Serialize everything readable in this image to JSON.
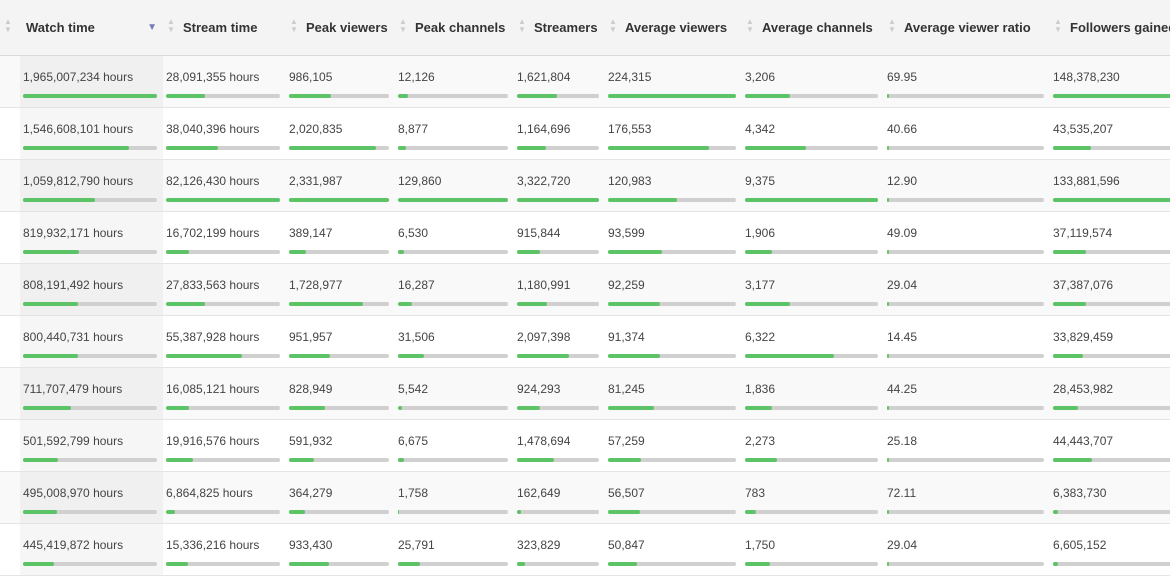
{
  "colors": {
    "bar_fill": "#5cc466",
    "bar_track": "#d0d0d0",
    "sort_arrow": "#7a7ab8"
  },
  "columns": [
    "Watch time",
    "Stream time",
    "Peak viewers",
    "Peak channels",
    "Streamers",
    "Average viewers",
    "Average channels",
    "Average viewer ratio",
    "Followers gained"
  ],
  "sorted_column": "Watch time",
  "sort_direction": "descending",
  "rows": [
    [
      "1,965,007,234 hours",
      "28,091,355 hours",
      "986,105",
      "12,126",
      "1,621,804",
      "224,315",
      "3,206",
      "69.95",
      "148,378,230"
    ],
    [
      "1,546,608,101 hours",
      "38,040,396 hours",
      "2,020,835",
      "8,877",
      "1,164,696",
      "176,553",
      "4,342",
      "40.66",
      "43,535,207"
    ],
    [
      "1,059,812,790 hours",
      "82,126,430 hours",
      "2,331,987",
      "129,860",
      "3,322,720",
      "120,983",
      "9,375",
      "12.90",
      "133,881,596"
    ],
    [
      "819,932,171 hours",
      "16,702,199 hours",
      "389,147",
      "6,530",
      "915,844",
      "93,599",
      "1,906",
      "49.09",
      "37,119,574"
    ],
    [
      "808,191,492 hours",
      "27,833,563 hours",
      "1,728,977",
      "16,287",
      "1,180,991",
      "92,259",
      "3,177",
      "29.04",
      "37,387,076"
    ],
    [
      "800,440,731 hours",
      "55,387,928 hours",
      "951,957",
      "31,506",
      "2,097,398",
      "91,374",
      "6,322",
      "14.45",
      "33,829,459"
    ],
    [
      "711,707,479 hours",
      "16,085,121 hours",
      "828,949",
      "5,542",
      "924,293",
      "81,245",
      "1,836",
      "44.25",
      "28,453,982"
    ],
    [
      "501,592,799 hours",
      "19,916,576 hours",
      "591,932",
      "6,675",
      "1,478,694",
      "57,259",
      "2,273",
      "25.18",
      "44,443,707"
    ],
    [
      "495,008,970 hours",
      "6,864,825 hours",
      "364,279",
      "1,758",
      "162,649",
      "56,507",
      "783",
      "72.11",
      "6,383,730"
    ],
    [
      "445,419,872 hours",
      "15,336,216 hours",
      "933,430",
      "25,791",
      "323,829",
      "50,847",
      "1,750",
      "29.04",
      "6,605,152"
    ]
  ],
  "fills": [
    [
      1,
      0.34,
      0.42,
      0.09,
      0.49,
      1,
      0.34,
      0.01,
      1
    ],
    [
      0.79,
      0.46,
      0.87,
      0.07,
      0.35,
      0.79,
      0.46,
      0.01,
      0.29
    ],
    [
      0.54,
      1,
      1,
      1,
      1,
      0.54,
      1,
      0.01,
      0.9
    ],
    [
      0.42,
      0.2,
      0.17,
      0.05,
      0.28,
      0.42,
      0.2,
      0.01,
      0.25
    ],
    [
      0.41,
      0.34,
      0.74,
      0.13,
      0.36,
      0.41,
      0.34,
      0.01,
      0.25
    ],
    [
      0.41,
      0.67,
      0.41,
      0.24,
      0.63,
      0.41,
      0.67,
      0.01,
      0.23
    ],
    [
      0.36,
      0.2,
      0.36,
      0.04,
      0.28,
      0.36,
      0.2,
      0.01,
      0.19
    ],
    [
      0.26,
      0.24,
      0.25,
      0.05,
      0.45,
      0.26,
      0.24,
      0.01,
      0.3
    ],
    [
      0.25,
      0.08,
      0.16,
      0.01,
      0.05,
      0.25,
      0.08,
      0.01,
      0.04
    ],
    [
      0.23,
      0.19,
      0.4,
      0.2,
      0.1,
      0.23,
      0.19,
      0.01,
      0.04
    ]
  ]
}
